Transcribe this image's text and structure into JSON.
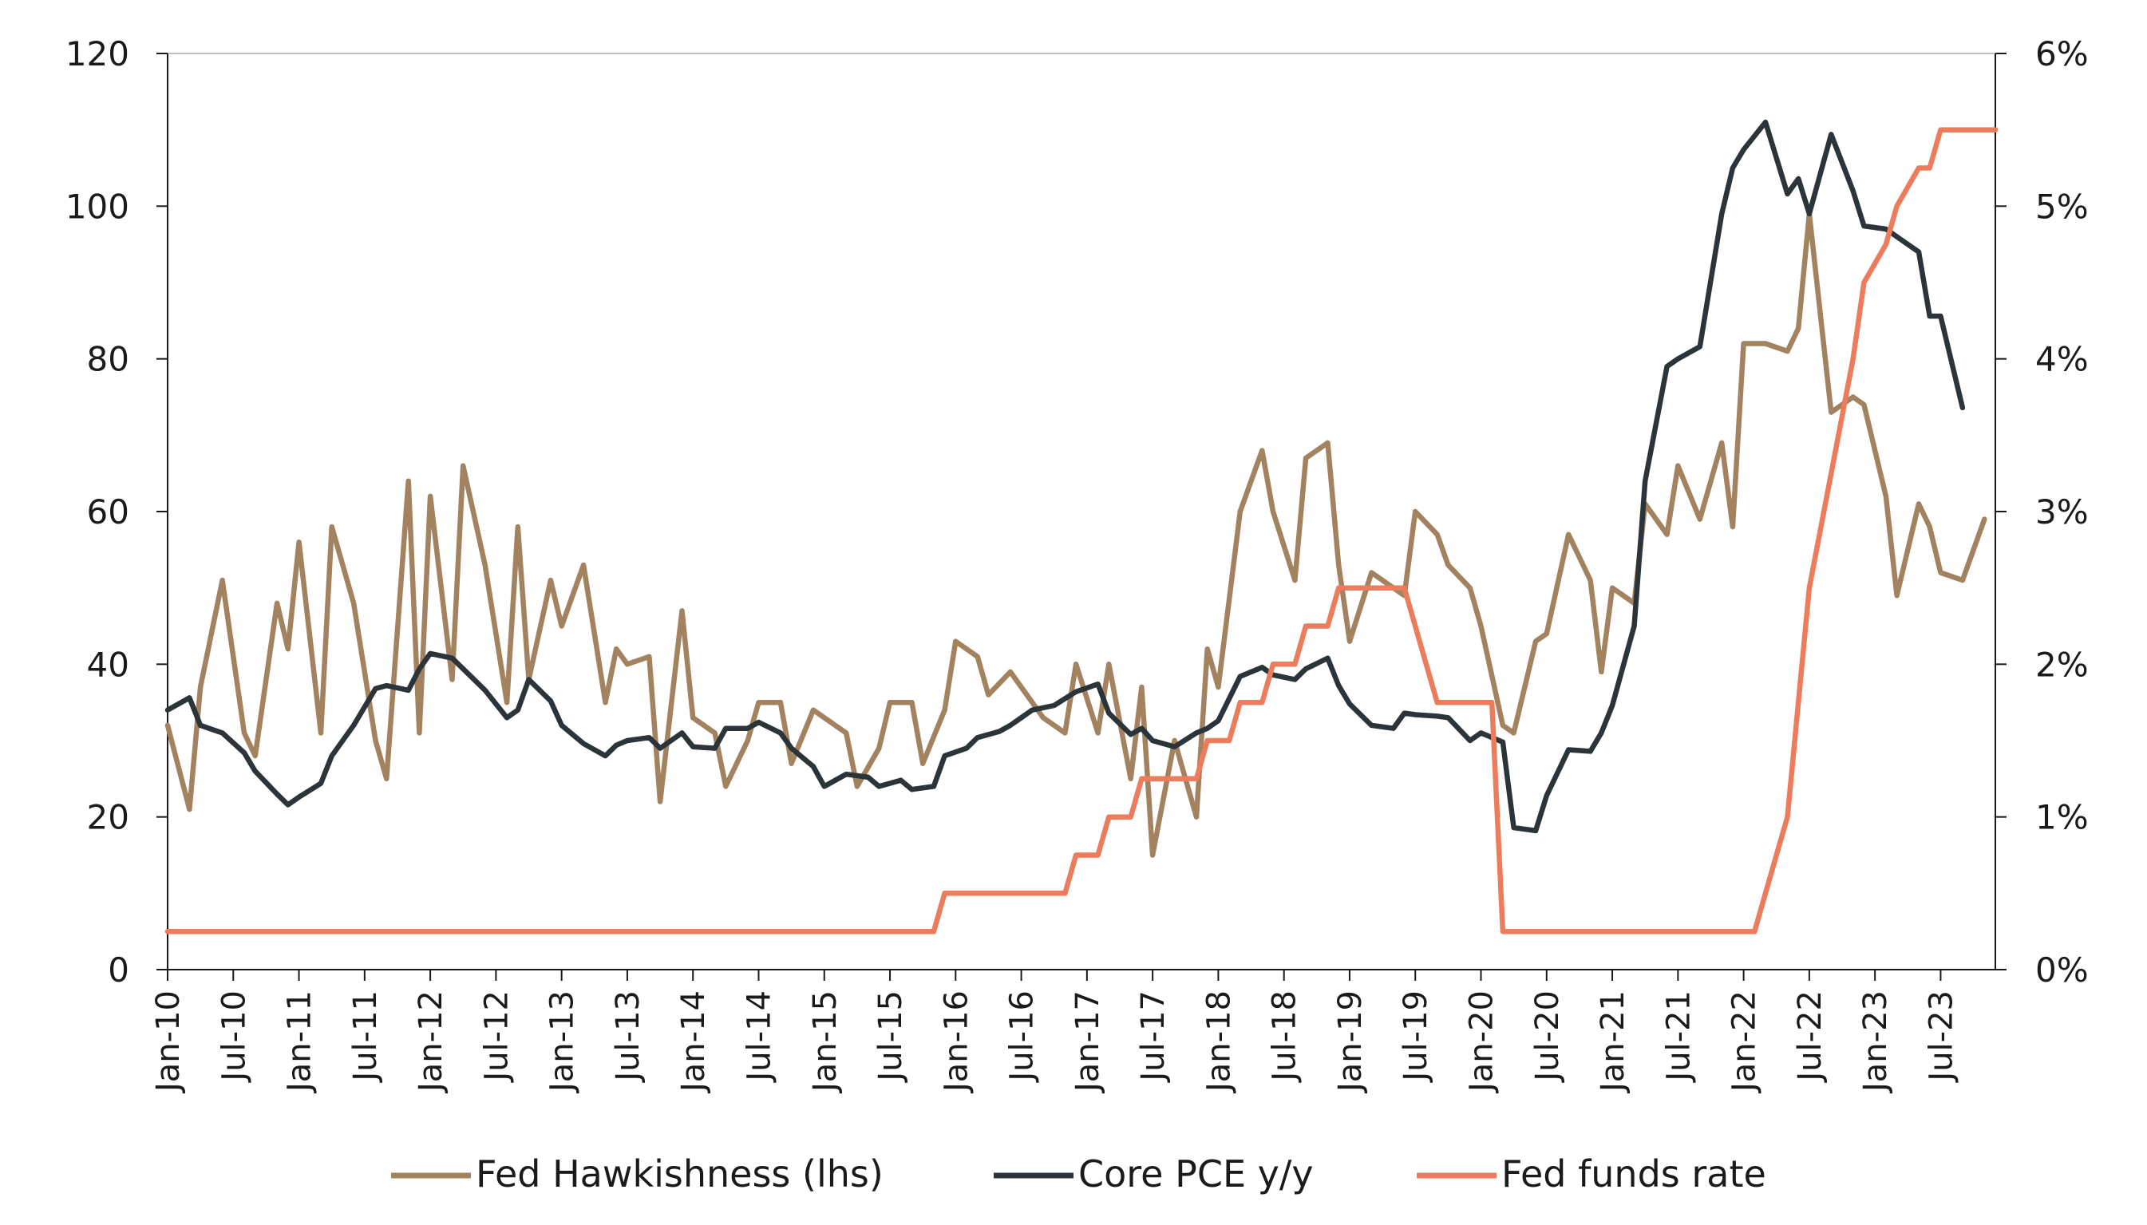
{
  "chart_data": {
    "type": "line",
    "title": "",
    "xlabel": "",
    "ylabel_left": "",
    "ylabel_right": "",
    "ylim_left": [
      0,
      120
    ],
    "ylim_right": [
      0,
      6
    ],
    "y_ticks_left": [
      "0",
      "20",
      "40",
      "60",
      "80",
      "100",
      "120"
    ],
    "y_ticks_right": [
      "0%",
      "1%",
      "2%",
      "3%",
      "4%",
      "5%",
      "6%"
    ],
    "x_start": "2010-01",
    "x_end": "2023-12",
    "x_ticks": [
      "Jan-10",
      "Jul-10",
      "Jan-11",
      "Jul-11",
      "Jan-12",
      "Jul-12",
      "Jan-13",
      "Jul-13",
      "Jan-14",
      "Jul-14",
      "Jan-15",
      "Jul-15",
      "Jan-16",
      "Jul-16",
      "Jan-17",
      "Jul-17",
      "Jan-18",
      "Jul-18",
      "Jan-19",
      "Jul-19",
      "Jan-20",
      "Jul-20",
      "Jan-21",
      "Jul-21",
      "Jan-22",
      "Jul-22",
      "Jan-23",
      "Jul-23"
    ],
    "grid": false,
    "legend_position": "bottom",
    "series": [
      {
        "name": "Fed Hawkishness (lhs)",
        "axis": "left",
        "color": "#A3835F",
        "points": [
          [
            "2010-01",
            32
          ],
          [
            "2010-03",
            21
          ],
          [
            "2010-04",
            37
          ],
          [
            "2010-06",
            51
          ],
          [
            "2010-08",
            31
          ],
          [
            "2010-09",
            28
          ],
          [
            "2010-11",
            48
          ],
          [
            "2010-12",
            42
          ],
          [
            "2011-01",
            56
          ],
          [
            "2011-03",
            31
          ],
          [
            "2011-04",
            58
          ],
          [
            "2011-06",
            48
          ],
          [
            "2011-08",
            30
          ],
          [
            "2011-09",
            25
          ],
          [
            "2011-11",
            64
          ],
          [
            "2011-12",
            31
          ],
          [
            "2012-01",
            62
          ],
          [
            "2012-03",
            38
          ],
          [
            "2012-04",
            66
          ],
          [
            "2012-06",
            53
          ],
          [
            "2012-08",
            35
          ],
          [
            "2012-09",
            58
          ],
          [
            "2012-10",
            38
          ],
          [
            "2012-12",
            51
          ],
          [
            "2013-01",
            45
          ],
          [
            "2013-03",
            53
          ],
          [
            "2013-05",
            35
          ],
          [
            "2013-06",
            42
          ],
          [
            "2013-07",
            40
          ],
          [
            "2013-09",
            41
          ],
          [
            "2013-10",
            22
          ],
          [
            "2013-12",
            47
          ],
          [
            "2014-01",
            33
          ],
          [
            "2014-03",
            31
          ],
          [
            "2014-04",
            24
          ],
          [
            "2014-06",
            30
          ],
          [
            "2014-07",
            35
          ],
          [
            "2014-09",
            35
          ],
          [
            "2014-10",
            27
          ],
          [
            "2014-12",
            34
          ],
          [
            "2015-03",
            31
          ],
          [
            "2015-04",
            24
          ],
          [
            "2015-06",
            29
          ],
          [
            "2015-07",
            35
          ],
          [
            "2015-09",
            35
          ],
          [
            "2015-10",
            27
          ],
          [
            "2015-12",
            34
          ],
          [
            "2016-01",
            43
          ],
          [
            "2016-03",
            41
          ],
          [
            "2016-04",
            36
          ],
          [
            "2016-06",
            39
          ],
          [
            "2016-09",
            33
          ],
          [
            "2016-11",
            31
          ],
          [
            "2016-12",
            40
          ],
          [
            "2017-02",
            31
          ],
          [
            "2017-03",
            40
          ],
          [
            "2017-05",
            25
          ],
          [
            "2017-06",
            37
          ],
          [
            "2017-07",
            15
          ],
          [
            "2017-09",
            30
          ],
          [
            "2017-11",
            20
          ],
          [
            "2017-12",
            42
          ],
          [
            "2018-01",
            37
          ],
          [
            "2018-03",
            60
          ],
          [
            "2018-05",
            68
          ],
          [
            "2018-06",
            60
          ],
          [
            "2018-08",
            51
          ],
          [
            "2018-09",
            67
          ],
          [
            "2018-11",
            69
          ],
          [
            "2018-12",
            53
          ],
          [
            "2019-01",
            43
          ],
          [
            "2019-03",
            52
          ],
          [
            "2019-05",
            50
          ],
          [
            "2019-06",
            49
          ],
          [
            "2019-07",
            60
          ],
          [
            "2019-09",
            57
          ],
          [
            "2019-10",
            53
          ],
          [
            "2019-12",
            50
          ],
          [
            "2020-01",
            45
          ],
          [
            "2020-03",
            32
          ],
          [
            "2020-04",
            31
          ],
          [
            "2020-06",
            43
          ],
          [
            "2020-07",
            44
          ],
          [
            "2020-09",
            57
          ],
          [
            "2020-11",
            51
          ],
          [
            "2020-12",
            39
          ],
          [
            "2021-01",
            50
          ],
          [
            "2021-03",
            48
          ],
          [
            "2021-04",
            61
          ],
          [
            "2021-06",
            57
          ],
          [
            "2021-07",
            66
          ],
          [
            "2021-09",
            59
          ],
          [
            "2021-11",
            69
          ],
          [
            "2021-12",
            58
          ],
          [
            "2022-01",
            82
          ],
          [
            "2022-03",
            82
          ],
          [
            "2022-05",
            81
          ],
          [
            "2022-06",
            84
          ],
          [
            "2022-07",
            99
          ],
          [
            "2022-09",
            73
          ],
          [
            "2022-11",
            75
          ],
          [
            "2022-12",
            74
          ],
          [
            "2023-02",
            62
          ],
          [
            "2023-03",
            49
          ],
          [
            "2023-05",
            61
          ],
          [
            "2023-06",
            58
          ],
          [
            "2023-07",
            52
          ],
          [
            "2023-09",
            51
          ],
          [
            "2023-11",
            59
          ]
        ]
      },
      {
        "name": "Core PCE y/y",
        "axis": "right",
        "color": "#2B3539",
        "points": [
          [
            "2010-01",
            1.7
          ],
          [
            "2010-03",
            1.78
          ],
          [
            "2010-04",
            1.6
          ],
          [
            "2010-06",
            1.55
          ],
          [
            "2010-08",
            1.42
          ],
          [
            "2010-09",
            1.3
          ],
          [
            "2010-11",
            1.15
          ],
          [
            "2010-12",
            1.08
          ],
          [
            "2011-01",
            1.13
          ],
          [
            "2011-03",
            1.22
          ],
          [
            "2011-04",
            1.4
          ],
          [
            "2011-06",
            1.6
          ],
          [
            "2011-08",
            1.84
          ],
          [
            "2011-09",
            1.86
          ],
          [
            "2011-11",
            1.83
          ],
          [
            "2011-12",
            1.97
          ],
          [
            "2012-01",
            2.07
          ],
          [
            "2012-03",
            2.04
          ],
          [
            "2012-05",
            1.9
          ],
          [
            "2012-06",
            1.83
          ],
          [
            "2012-08",
            1.65
          ],
          [
            "2012-09",
            1.7
          ],
          [
            "2012-10",
            1.9
          ],
          [
            "2012-12",
            1.76
          ],
          [
            "2013-01",
            1.6
          ],
          [
            "2013-03",
            1.48
          ],
          [
            "2013-05",
            1.4
          ],
          [
            "2013-06",
            1.47
          ],
          [
            "2013-07",
            1.5
          ],
          [
            "2013-09",
            1.52
          ],
          [
            "2013-10",
            1.45
          ],
          [
            "2013-12",
            1.55
          ],
          [
            "2014-01",
            1.46
          ],
          [
            "2014-03",
            1.45
          ],
          [
            "2014-04",
            1.58
          ],
          [
            "2014-06",
            1.58
          ],
          [
            "2014-07",
            1.62
          ],
          [
            "2014-09",
            1.55
          ],
          [
            "2014-10",
            1.45
          ],
          [
            "2014-12",
            1.33
          ],
          [
            "2015-01",
            1.2
          ],
          [
            "2015-03",
            1.28
          ],
          [
            "2015-05",
            1.26
          ],
          [
            "2015-06",
            1.2
          ],
          [
            "2015-08",
            1.24
          ],
          [
            "2015-09",
            1.18
          ],
          [
            "2015-11",
            1.2
          ],
          [
            "2015-12",
            1.4
          ],
          [
            "2016-02",
            1.45
          ],
          [
            "2016-03",
            1.52
          ],
          [
            "2016-05",
            1.56
          ],
          [
            "2016-06",
            1.6
          ],
          [
            "2016-08",
            1.7
          ],
          [
            "2016-10",
            1.73
          ],
          [
            "2016-12",
            1.82
          ],
          [
            "2017-02",
            1.87
          ],
          [
            "2017-03",
            1.68
          ],
          [
            "2017-05",
            1.54
          ],
          [
            "2017-06",
            1.58
          ],
          [
            "2017-07",
            1.5
          ],
          [
            "2017-09",
            1.46
          ],
          [
            "2017-11",
            1.55
          ],
          [
            "2017-12",
            1.58
          ],
          [
            "2018-01",
            1.63
          ],
          [
            "2018-03",
            1.92
          ],
          [
            "2018-05",
            1.98
          ],
          [
            "2018-06",
            1.93
          ],
          [
            "2018-08",
            1.9
          ],
          [
            "2018-09",
            1.97
          ],
          [
            "2018-11",
            2.04
          ],
          [
            "2018-12",
            1.86
          ],
          [
            "2019-01",
            1.74
          ],
          [
            "2019-03",
            1.6
          ],
          [
            "2019-05",
            1.58
          ],
          [
            "2019-06",
            1.68
          ],
          [
            "2019-07",
            1.67
          ],
          [
            "2019-09",
            1.66
          ],
          [
            "2019-10",
            1.65
          ],
          [
            "2019-12",
            1.5
          ],
          [
            "2020-01",
            1.55
          ],
          [
            "2020-03",
            1.49
          ],
          [
            "2020-04",
            0.93
          ],
          [
            "2020-06",
            0.91
          ],
          [
            "2020-07",
            1.14
          ],
          [
            "2020-09",
            1.44
          ],
          [
            "2020-11",
            1.43
          ],
          [
            "2020-12",
            1.55
          ],
          [
            "2021-01",
            1.73
          ],
          [
            "2021-03",
            2.25
          ],
          [
            "2021-04",
            3.2
          ],
          [
            "2021-06",
            3.95
          ],
          [
            "2021-07",
            4.0
          ],
          [
            "2021-09",
            4.08
          ],
          [
            "2021-11",
            4.95
          ],
          [
            "2021-12",
            5.25
          ],
          [
            "2022-01",
            5.37
          ],
          [
            "2022-03",
            5.55
          ],
          [
            "2022-05",
            5.08
          ],
          [
            "2022-06",
            5.18
          ],
          [
            "2022-07",
            4.95
          ],
          [
            "2022-09",
            5.47
          ],
          [
            "2022-11",
            5.1
          ],
          [
            "2022-12",
            4.87
          ],
          [
            "2023-02",
            4.85
          ],
          [
            "2023-03",
            4.8
          ],
          [
            "2023-05",
            4.7
          ],
          [
            "2023-06",
            4.28
          ],
          [
            "2023-07",
            4.28
          ],
          [
            "2023-09",
            3.68
          ]
        ]
      },
      {
        "name": "Fed funds rate",
        "axis": "right",
        "color": "#ED7C5D",
        "points": [
          [
            "2010-01",
            0.25
          ],
          [
            "2015-11",
            0.25
          ],
          [
            "2015-12",
            0.5
          ],
          [
            "2016-11",
            0.5
          ],
          [
            "2016-12",
            0.75
          ],
          [
            "2017-02",
            0.75
          ],
          [
            "2017-03",
            1.0
          ],
          [
            "2017-05",
            1.0
          ],
          [
            "2017-06",
            1.25
          ],
          [
            "2017-11",
            1.25
          ],
          [
            "2017-12",
            1.5
          ],
          [
            "2018-02",
            1.5
          ],
          [
            "2018-03",
            1.75
          ],
          [
            "2018-05",
            1.75
          ],
          [
            "2018-06",
            2.0
          ],
          [
            "2018-08",
            2.0
          ],
          [
            "2018-09",
            2.25
          ],
          [
            "2018-11",
            2.25
          ],
          [
            "2018-12",
            2.5
          ],
          [
            "2019-06",
            2.5
          ],
          [
            "2019-07",
            2.25
          ],
          [
            "2019-08",
            2.0
          ],
          [
            "2019-09",
            1.75
          ],
          [
            "2019-12",
            1.75
          ],
          [
            "2020-01",
            1.75
          ],
          [
            "2020-02",
            1.75
          ],
          [
            "2020-03",
            0.25
          ],
          [
            "2022-02",
            0.25
          ],
          [
            "2022-03",
            0.5
          ],
          [
            "2022-04",
            0.75
          ],
          [
            "2022-05",
            1.0
          ],
          [
            "2022-06",
            1.75
          ],
          [
            "2022-07",
            2.5
          ],
          [
            "2022-09",
            3.25
          ],
          [
            "2022-11",
            4.0
          ],
          [
            "2022-12",
            4.5
          ],
          [
            "2023-02",
            4.75
          ],
          [
            "2023-03",
            5.0
          ],
          [
            "2023-05",
            5.25
          ],
          [
            "2023-06",
            5.25
          ],
          [
            "2023-07",
            5.5
          ],
          [
            "2023-12",
            5.5
          ]
        ]
      }
    ]
  }
}
